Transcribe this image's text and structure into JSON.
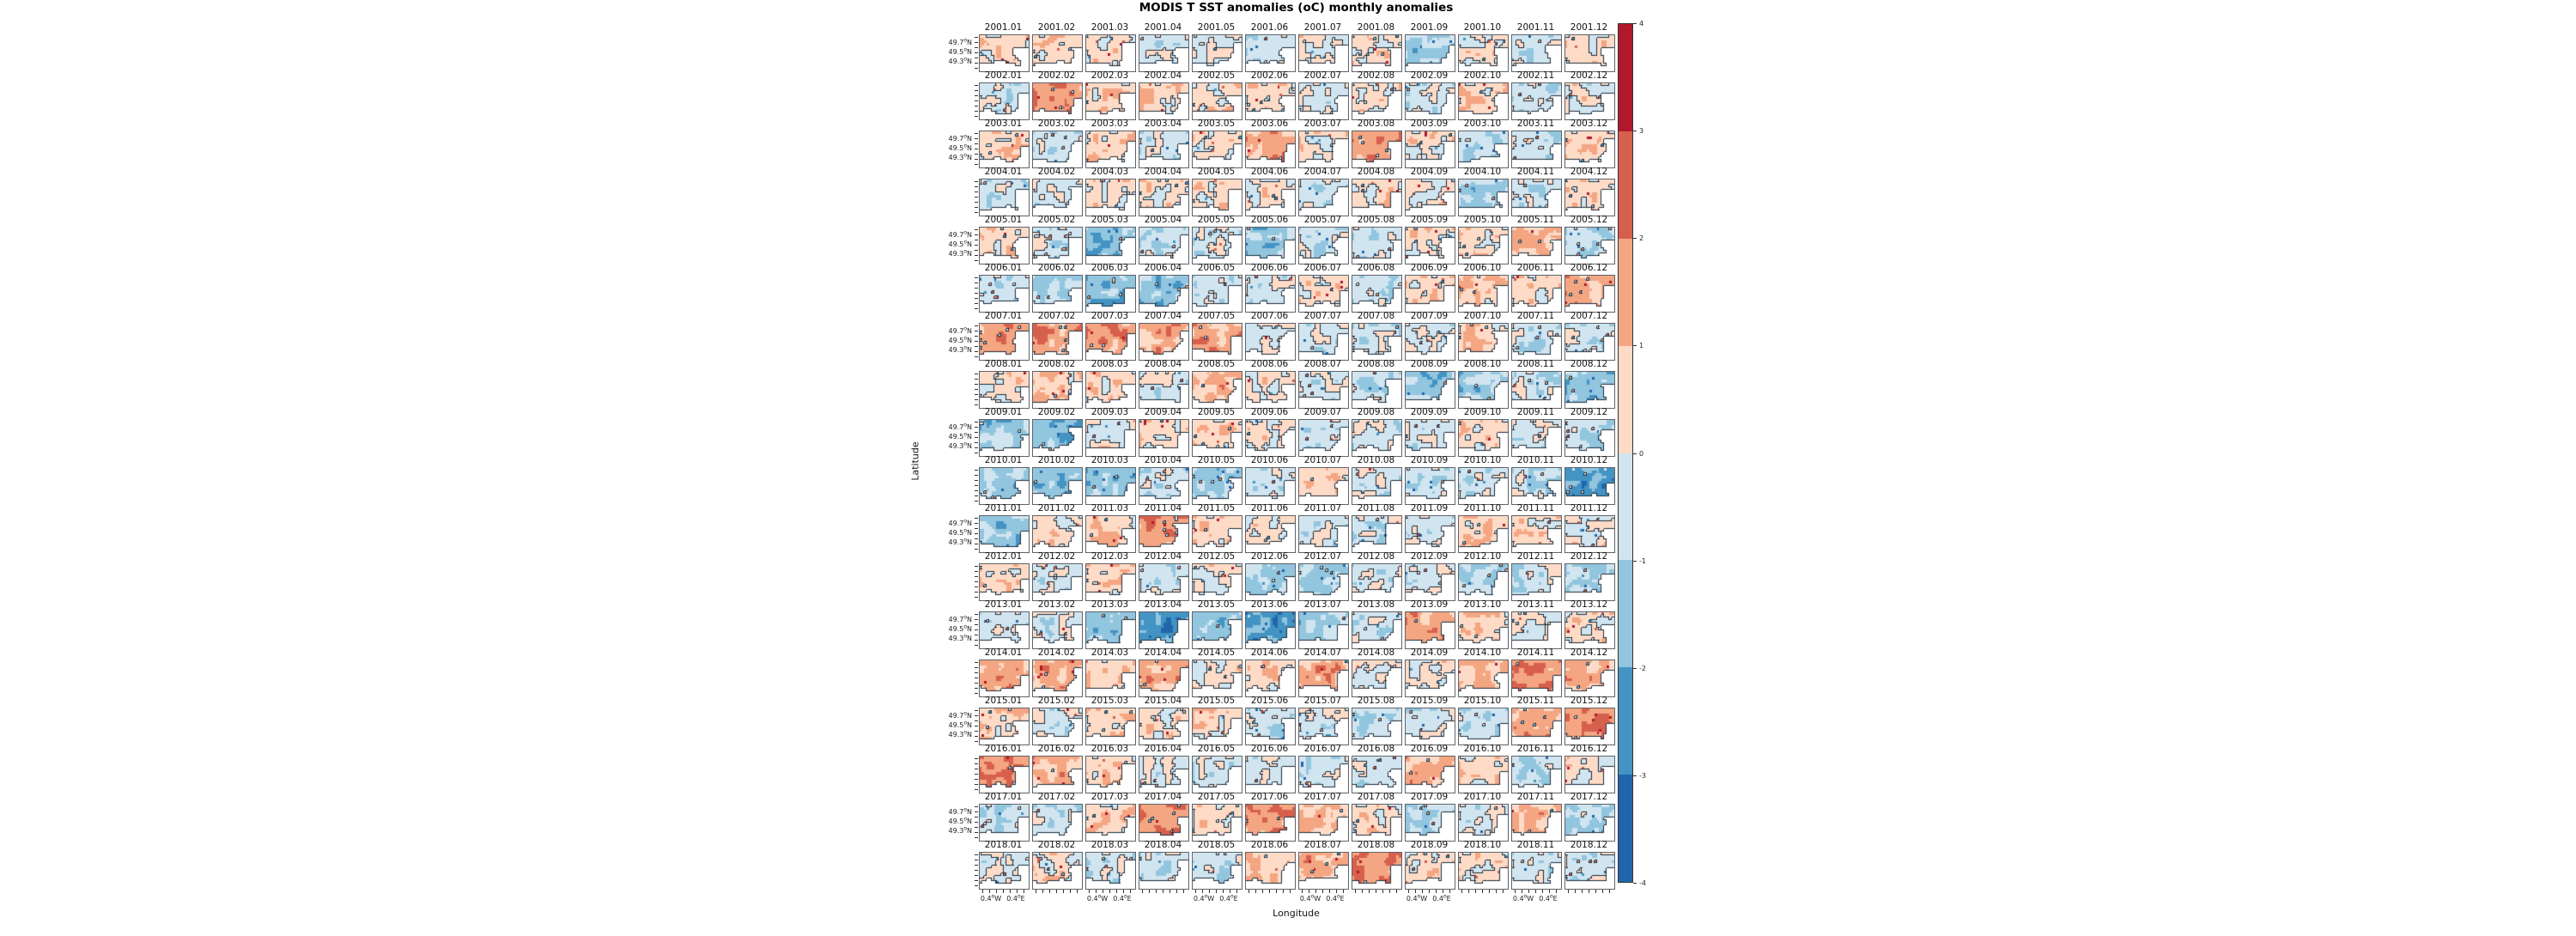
{
  "figure": {
    "title": "MODIS T SST anomalies (oC) monthly anomalies",
    "xlabel": "Longitude",
    "ylabel": "Latitude"
  },
  "axes": {
    "lat_tick_labels": [
      "49.7°N",
      "49.5°N",
      "49.3°N"
    ],
    "lon_tick_labels": [
      "0.4°W",
      "0.4°E"
    ]
  },
  "colorbar": {
    "tick_labels": [
      "4",
      "3",
      "2",
      "1",
      "0",
      "-1",
      "-2",
      "-3",
      "-4"
    ],
    "min": -4,
    "max": 4,
    "colors_top_to_bottom": [
      "#b2182b",
      "#d6604d",
      "#f4a582",
      "#fddbc7",
      "#d1e5f0",
      "#92c5de",
      "#4393c3",
      "#2166ac"
    ]
  },
  "chart_data": {
    "type": "heatmap",
    "title": "MODIS T SST anomalies (oC) monthly anomalies",
    "xlabel": "Longitude",
    "ylabel": "Latitude",
    "units": "oC",
    "layout": "small-multiples, 18 year-rows x 12 month-columns of filled-contour coastal maps",
    "lat_ticks": [
      "49.7°N",
      "49.5°N",
      "49.3°N"
    ],
    "lon_ticks": [
      "0.4°W",
      "0.4°E"
    ],
    "color_levels": [
      -4,
      -3,
      -2,
      -1,
      0,
      1,
      2,
      3,
      4
    ],
    "palette_pos_to_neg": [
      "#b2182b",
      "#d6604d",
      "#f4a582",
      "#fddbc7",
      "#d1e5f0",
      "#92c5de",
      "#4393c3",
      "#2166ac"
    ],
    "years": [
      2001,
      2002,
      2003,
      2004,
      2005,
      2006,
      2007,
      2008,
      2009,
      2010,
      2011,
      2012,
      2013,
      2014,
      2015,
      2016,
      2017,
      2018
    ],
    "months": [
      "01",
      "02",
      "03",
      "04",
      "05",
      "06",
      "07",
      "08",
      "09",
      "10",
      "11",
      "12"
    ],
    "series": [
      {
        "name": "2001",
        "mean_anomaly": [
          0.5,
          0.6,
          0.3,
          -0.5,
          -0.2,
          -0.7,
          0.3,
          0.5,
          -1.1,
          0.2,
          -0.3,
          0.5
        ]
      },
      {
        "name": "2002",
        "mean_anomaly": [
          -0.5,
          1.7,
          0.6,
          0.5,
          0.5,
          0.5,
          -0.3,
          0.4,
          -0.5,
          0.5,
          -0.5,
          0.1
        ]
      },
      {
        "name": "2003",
        "mean_anomaly": [
          0.5,
          -0.5,
          0.3,
          -0.5,
          0.4,
          1.5,
          0.5,
          1.6,
          0.4,
          -0.8,
          -0.4,
          0.4
        ]
      },
      {
        "name": "2004",
        "mean_anomaly": [
          -0.5,
          -0.3,
          0.4,
          0.4,
          0.4,
          0.1,
          -0.4,
          0.4,
          0.4,
          -1.1,
          -0.5,
          0.3
        ]
      },
      {
        "name": "2005",
        "mean_anomaly": [
          0.6,
          -0.2,
          -1.6,
          -0.5,
          -0.4,
          -1.3,
          -0.5,
          -0.3,
          0.4,
          0.4,
          1.0,
          -0.7
        ]
      },
      {
        "name": "2006",
        "mean_anomaly": [
          -0.7,
          -1.0,
          -1.7,
          -1.4,
          -0.6,
          -0.4,
          0.4,
          -0.4,
          0.4,
          0.7,
          0.4,
          1.4
        ]
      },
      {
        "name": "2007",
        "mean_anomaly": [
          1.6,
          1.6,
          1.5,
          1.3,
          1.5,
          -0.3,
          -0.4,
          -0.4,
          -0.4,
          0.6,
          -0.5,
          -0.4
        ]
      },
      {
        "name": "2008",
        "mean_anomaly": [
          0.3,
          0.4,
          0.4,
          -0.2,
          1.0,
          0.4,
          -0.4,
          -0.5,
          -1.3,
          -1.2,
          -0.5,
          -1.3
        ]
      },
      {
        "name": "2009",
        "mean_anomaly": [
          -1.4,
          -1.5,
          0.3,
          0.4,
          0.7,
          0.2,
          -0.4,
          -0.4,
          -0.5,
          0.4,
          -0.3,
          -0.9
        ]
      },
      {
        "name": "2010",
        "mean_anomaly": [
          -1.4,
          -1.5,
          -1.4,
          -0.8,
          -1.2,
          -0.5,
          0.3,
          -0.3,
          -0.4,
          -0.5,
          -0.6,
          -2.4
        ]
      },
      {
        "name": "2011",
        "mean_anomaly": [
          -1.5,
          0.3,
          0.6,
          1.7,
          0.6,
          0.0,
          -0.4,
          -0.4,
          -0.4,
          0.7,
          0.5,
          0.1
        ]
      },
      {
        "name": "2012",
        "mean_anomaly": [
          0.5,
          -0.3,
          0.5,
          -0.5,
          0.1,
          -1.0,
          -0.9,
          -0.5,
          -0.4,
          -1.3,
          -0.5,
          -0.8
        ]
      },
      {
        "name": "2013",
        "mean_anomaly": [
          -0.4,
          -0.4,
          -1.3,
          -2.4,
          -1.5,
          -2.2,
          -1.3,
          -0.5,
          1.3,
          0.5,
          0.0,
          0.5
        ]
      },
      {
        "name": "2014",
        "mean_anomaly": [
          1.4,
          1.3,
          0.7,
          1.5,
          0.5,
          0.7,
          1.4,
          0.0,
          0.1,
          1.0,
          1.7,
          1.2
        ]
      },
      {
        "name": "2015",
        "mean_anomaly": [
          0.9,
          -0.4,
          0.7,
          0.5,
          0.6,
          -0.4,
          -0.3,
          -0.5,
          -0.4,
          -0.5,
          1.3,
          1.8
        ]
      },
      {
        "name": "2016",
        "mean_anomaly": [
          1.6,
          1.1,
          0.4,
          -0.1,
          -0.5,
          -0.2,
          -0.4,
          -0.5,
          1.4,
          0.4,
          -1.0,
          0.3
        ]
      },
      {
        "name": "2017",
        "mean_anomaly": [
          -0.9,
          -0.6,
          0.4,
          1.7,
          0.4,
          1.8,
          0.9,
          0.4,
          -0.9,
          -0.2,
          1.3,
          -1.0
        ]
      },
      {
        "name": "2018",
        "mean_anomaly": [
          -0.1,
          0.3,
          -0.6,
          -0.6,
          -0.5,
          0.9,
          1.2,
          1.7,
          0.4,
          0.4,
          -0.5,
          -0.6
        ]
      }
    ]
  }
}
